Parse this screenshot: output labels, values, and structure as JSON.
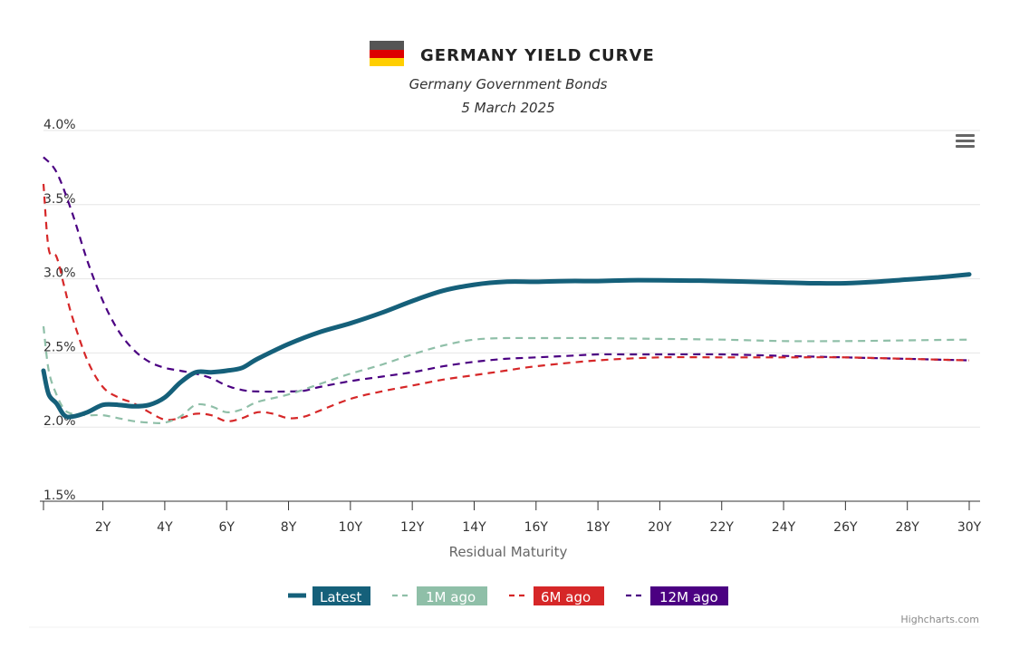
{
  "header": {
    "flag_colors": [
      "#555555",
      "#dd0000",
      "#ffce00"
    ]
  },
  "menu": {
    "icon": "hamburger-menu-icon"
  },
  "credits": "Highcharts.com",
  "chart_data": {
    "type": "line",
    "title": "GERMANY YIELD CURVE",
    "subtitle": "Germany Government Bonds",
    "date": "5 March 2025",
    "xlabel": "Residual Maturity",
    "ylabel": "",
    "xlim": [
      0.08,
      30
    ],
    "ylim": [
      1.5,
      4.0
    ],
    "y_tick_labels": [
      "1.5%",
      "2.0%",
      "2.5%",
      "3.0%",
      "3.5%",
      "4.0%"
    ],
    "y_tick_values": [
      1.5,
      2.0,
      2.5,
      3.0,
      3.5,
      4.0
    ],
    "x_tick_labels": [
      "2Y",
      "4Y",
      "6Y",
      "8Y",
      "10Y",
      "12Y",
      "14Y",
      "16Y",
      "18Y",
      "20Y",
      "22Y",
      "24Y",
      "26Y",
      "28Y",
      "30Y"
    ],
    "x_tick_values": [
      2,
      4,
      6,
      8,
      10,
      12,
      14,
      16,
      18,
      20,
      22,
      24,
      26,
      28,
      30
    ],
    "grid": true,
    "legend_position": "bottom",
    "series": [
      {
        "name": "Latest",
        "color": "#15607a",
        "dash": "solid",
        "x": [
          0.08,
          0.25,
          0.5,
          0.75,
          1,
          1.5,
          2,
          2.5,
          3,
          3.5,
          4,
          4.5,
          5,
          5.5,
          6,
          6.5,
          7,
          8,
          9,
          10,
          11,
          12,
          13,
          14,
          15,
          16,
          17,
          18,
          19,
          20,
          22,
          24,
          25,
          26,
          27,
          28,
          29,
          30
        ],
        "y": [
          2.38,
          2.22,
          2.16,
          2.08,
          2.07,
          2.1,
          2.15,
          2.15,
          2.14,
          2.15,
          2.2,
          2.3,
          2.37,
          2.37,
          2.38,
          2.4,
          2.46,
          2.56,
          2.64,
          2.7,
          2.77,
          2.85,
          2.92,
          2.96,
          2.98,
          2.98,
          2.985,
          2.985,
          2.99,
          2.99,
          2.985,
          2.975,
          2.97,
          2.97,
          2.98,
          2.995,
          3.01,
          3.03
        ]
      },
      {
        "name": "1M ago",
        "color": "#8fbfa8",
        "dash": "dashed",
        "x": [
          0.08,
          0.25,
          0.5,
          0.75,
          1,
          1.5,
          2,
          2.5,
          3,
          3.5,
          4,
          4.5,
          5,
          5.5,
          6,
          6.5,
          7,
          8,
          9,
          10,
          11,
          12,
          13,
          14,
          15,
          16,
          18,
          20,
          22,
          24,
          26,
          28,
          30
        ],
        "y": [
          2.68,
          2.38,
          2.22,
          2.12,
          2.09,
          2.08,
          2.08,
          2.06,
          2.04,
          2.03,
          2.03,
          2.07,
          2.15,
          2.14,
          2.1,
          2.12,
          2.17,
          2.22,
          2.29,
          2.36,
          2.42,
          2.49,
          2.55,
          2.59,
          2.6,
          2.6,
          2.6,
          2.595,
          2.59,
          2.58,
          2.58,
          2.585,
          2.59
        ]
      },
      {
        "name": "6M ago",
        "color": "#d62728",
        "dash": "dashed",
        "x": [
          0.08,
          0.25,
          0.5,
          0.75,
          1,
          1.5,
          2,
          2.5,
          3,
          3.5,
          4,
          4.5,
          5,
          5.5,
          6,
          6.5,
          7,
          7.5,
          8,
          8.5,
          9,
          10,
          11,
          12,
          13,
          14,
          15,
          16,
          18,
          20,
          22,
          24,
          26,
          28,
          30
        ],
        "y": [
          3.64,
          3.2,
          3.15,
          2.95,
          2.75,
          2.45,
          2.27,
          2.2,
          2.16,
          2.1,
          2.05,
          2.06,
          2.09,
          2.08,
          2.04,
          2.06,
          2.1,
          2.09,
          2.06,
          2.07,
          2.11,
          2.19,
          2.24,
          2.28,
          2.32,
          2.35,
          2.38,
          2.41,
          2.45,
          2.47,
          2.47,
          2.47,
          2.47,
          2.46,
          2.45
        ]
      },
      {
        "name": "12M ago",
        "color": "#4b0082",
        "dash": "dashed",
        "x": [
          0.08,
          0.5,
          1,
          1.5,
          2,
          2.5,
          3,
          3.5,
          4,
          4.5,
          5,
          5.5,
          6,
          6.5,
          7,
          8,
          8.5,
          9,
          10,
          11,
          12,
          13,
          14,
          15,
          16,
          17,
          18,
          19,
          20,
          22,
          24,
          26,
          28,
          30
        ],
        "y": [
          3.82,
          3.72,
          3.45,
          3.12,
          2.85,
          2.65,
          2.52,
          2.44,
          2.4,
          2.38,
          2.36,
          2.33,
          2.28,
          2.25,
          2.24,
          2.24,
          2.245,
          2.27,
          2.31,
          2.34,
          2.37,
          2.41,
          2.44,
          2.46,
          2.47,
          2.48,
          2.49,
          2.49,
          2.49,
          2.49,
          2.48,
          2.47,
          2.46,
          2.45
        ]
      }
    ]
  }
}
